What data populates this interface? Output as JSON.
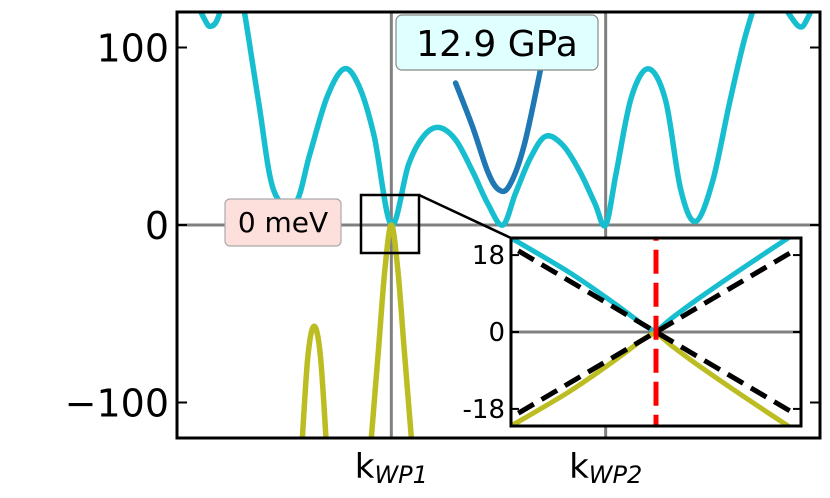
{
  "chart_data": [
    {
      "type": "line",
      "xlabel": "",
      "ylabel": "",
      "ylim": [
        -120,
        120
      ],
      "yticks": [
        100,
        0,
        -100
      ],
      "ytick_labels": [
        "100",
        "0",
        "−100"
      ],
      "xticks": [
        {
          "label_main": "k",
          "label_sub": "WP1",
          "x": 1.0
        },
        {
          "label_main": "k",
          "label_sub": "WP2",
          "x": 2.0
        }
      ],
      "xlim": [
        0,
        3.0
      ],
      "grid": false,
      "pressure_label": "12.9 GPa",
      "energy_label": "0 meV",
      "colors": {
        "conduction": "#17becf",
        "valence": "#bcbd22",
        "dark_band": "#1f77b4",
        "ref_line": "#808080"
      },
      "series": [
        {
          "role": "conduction-band",
          "color": "#17becf",
          "x": [
            0.0,
            0.12,
            0.16,
            0.2,
            0.25,
            0.3,
            0.38,
            0.45,
            0.55,
            0.62,
            0.7,
            0.78,
            0.85,
            0.92,
            1.0,
            1.08,
            1.15,
            1.22,
            1.3,
            1.38,
            1.45,
            1.52,
            1.58,
            1.65,
            1.72,
            1.8,
            1.88,
            1.95,
            2.0,
            2.05,
            2.12,
            2.2,
            2.28,
            2.35,
            2.42,
            2.5,
            2.58,
            2.66,
            2.74,
            2.82,
            2.9,
            2.94,
            2.98,
            3.0
          ],
          "y": [
            150,
            118,
            112,
            120,
            150,
            130,
            70,
            20,
            12,
            40,
            72,
            88,
            78,
            50,
            0,
            34,
            50,
            55,
            48,
            30,
            12,
            0,
            18,
            38,
            50,
            45,
            30,
            12,
            0,
            30,
            72,
            88,
            70,
            20,
            2,
            25,
            70,
            110,
            135,
            125,
            112,
            116,
            130,
            150
          ]
        },
        {
          "role": "dark-band",
          "color": "#1f77b4",
          "x": [
            1.3,
            1.38,
            1.45,
            1.5,
            1.55,
            1.62,
            1.7
          ],
          "y": [
            80,
            55,
            30,
            20,
            22,
            45,
            90
          ]
        },
        {
          "role": "valence-main",
          "color": "#bcbd22",
          "x": [
            0.9,
            0.94,
            0.97,
            1.0,
            1.03,
            1.06,
            1.1
          ],
          "y": [
            -130,
            -70,
            -25,
            0,
            -25,
            -70,
            -130
          ]
        },
        {
          "role": "valence-side",
          "color": "#bcbd22",
          "x": [
            0.58,
            0.61,
            0.64,
            0.67,
            0.7
          ],
          "y": [
            -130,
            -75,
            -57,
            -75,
            -130
          ]
        }
      ]
    },
    {
      "type": "line",
      "ylim": [
        -22,
        22
      ],
      "xlim": [
        -1,
        1
      ],
      "yticks": [
        18,
        0,
        -18
      ],
      "ytick_labels": [
        "18",
        "0",
        "-18"
      ],
      "series": [
        {
          "role": "cb-left",
          "color": "#17becf",
          "x": [
            -1.0,
            -0.6,
            -0.3,
            -0.1,
            0.0
          ],
          "y": [
            22,
            14,
            7,
            2,
            0
          ]
        },
        {
          "role": "cb-right",
          "color": "#17becf",
          "x": [
            0.0,
            0.1,
            0.3,
            0.6,
            1.0
          ],
          "y": [
            0,
            3,
            8,
            15,
            24
          ]
        },
        {
          "role": "vb-left",
          "color": "#bcbd22",
          "x": [
            -1.0,
            -0.6,
            -0.3,
            -0.1,
            0.0
          ],
          "y": [
            -22,
            -14,
            -7,
            -2,
            0
          ]
        },
        {
          "role": "vb-right",
          "color": "#bcbd22",
          "x": [
            0.0,
            0.1,
            0.3,
            0.6,
            1.0
          ],
          "y": [
            0,
            -3,
            -8,
            -15,
            -24
          ]
        },
        {
          "role": "linear-fit-1",
          "color": "#000000",
          "dash": true,
          "x": [
            -0.95,
            0.95
          ],
          "y": [
            -19,
            19
          ]
        },
        {
          "role": "linear-fit-2",
          "color": "#000000",
          "dash": true,
          "x": [
            -0.95,
            0.95
          ],
          "y": [
            19,
            -19
          ]
        },
        {
          "role": "wp-marker",
          "color": "#ff0000",
          "dash": true,
          "x": [
            0,
            0
          ],
          "y": [
            -25,
            25
          ]
        }
      ]
    }
  ]
}
